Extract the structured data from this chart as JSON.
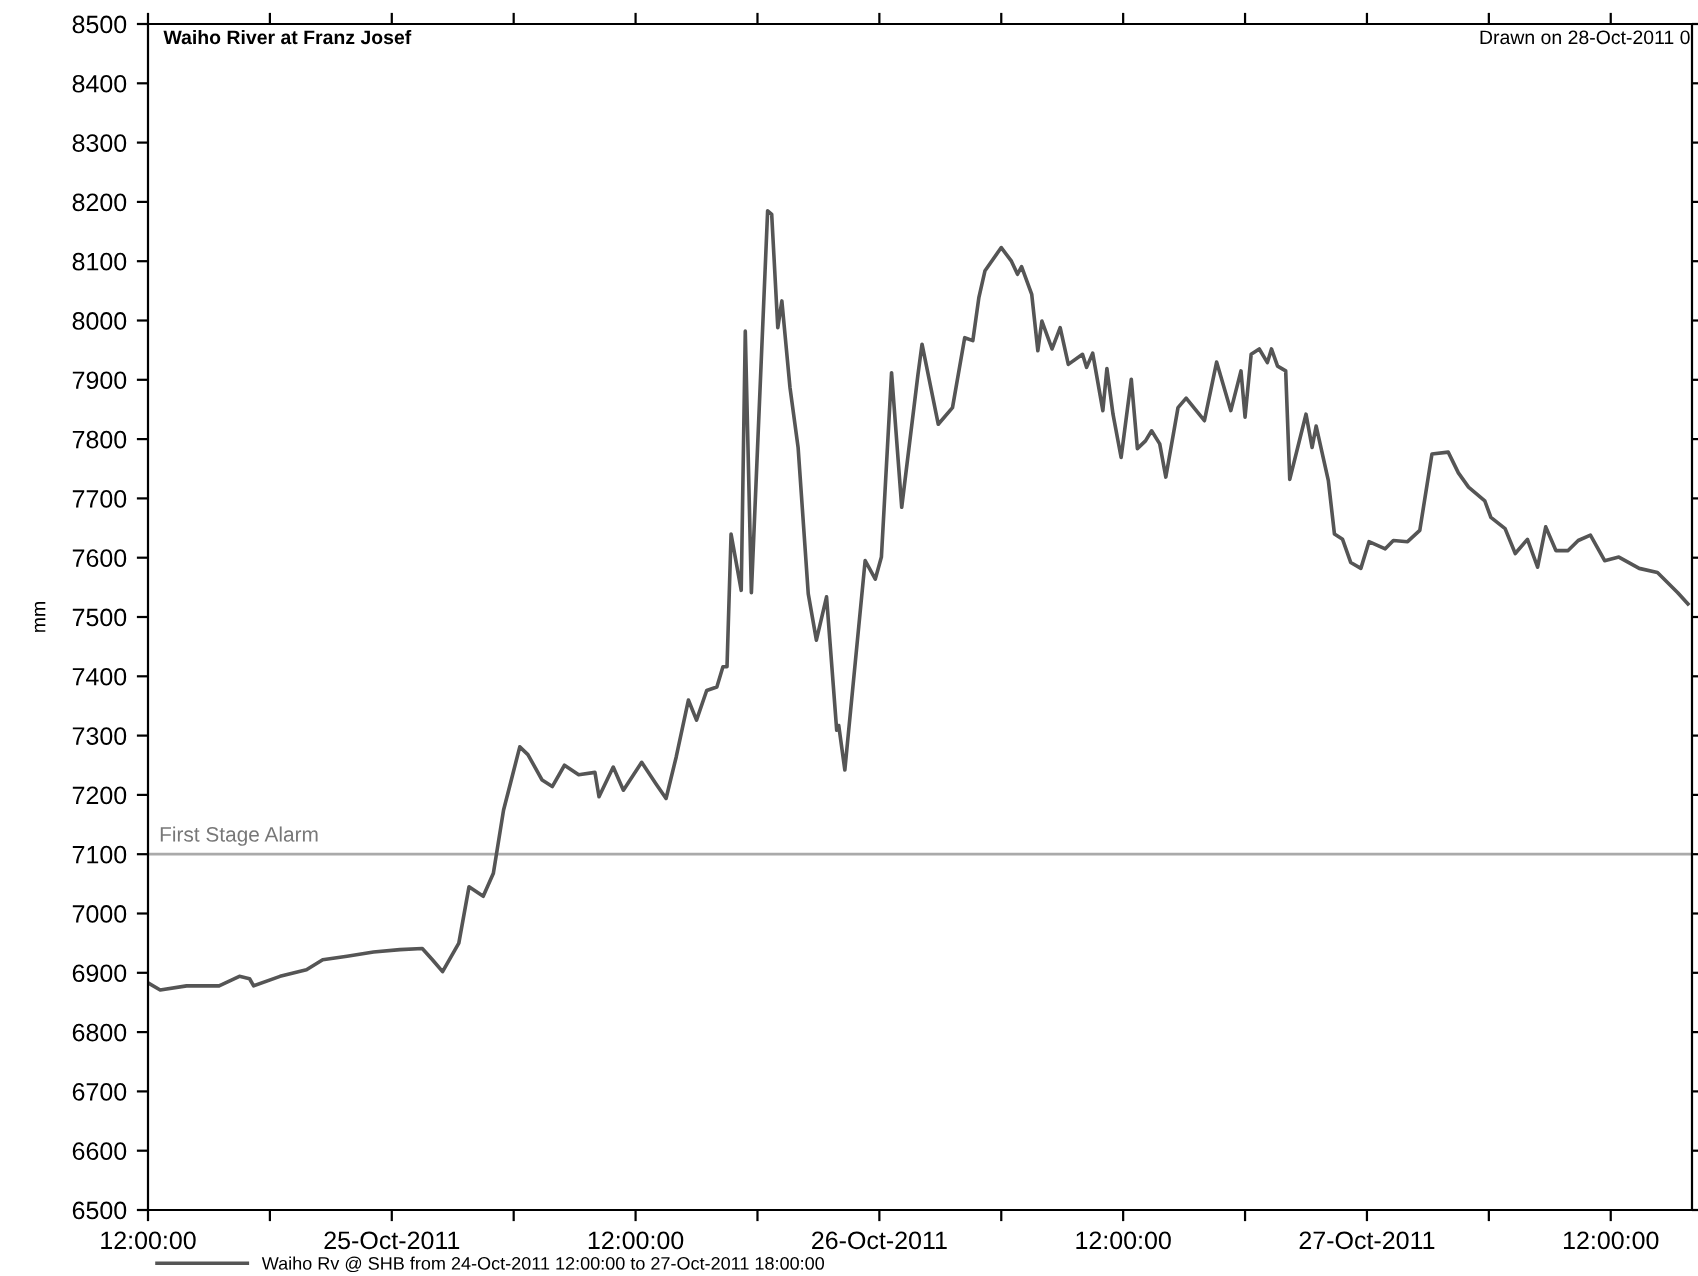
{
  "chart_data": {
    "type": "line",
    "title": "Waiho River at Franz Josef",
    "ylabel": "mm",
    "annotations": [
      "Drawn on 28-Oct-2011 0"
    ],
    "xlim": [
      "2011-10-24T12:00",
      "2011-10-27T16:00"
    ],
    "xticks": [
      {
        "value": "2011-10-24T12:00",
        "label": "12:00:00"
      },
      {
        "value": "2011-10-24T18:00",
        "label": null
      },
      {
        "value": "2011-10-25T00:00",
        "label": "25-Oct-2011"
      },
      {
        "value": "2011-10-25T06:00",
        "label": null
      },
      {
        "value": "2011-10-25T12:00",
        "label": "12:00:00"
      },
      {
        "value": "2011-10-25T18:00",
        "label": null
      },
      {
        "value": "2011-10-26T00:00",
        "label": "26-Oct-2011"
      },
      {
        "value": "2011-10-26T06:00",
        "label": null
      },
      {
        "value": "2011-10-26T12:00",
        "label": "12:00:00"
      },
      {
        "value": "2011-10-26T18:00",
        "label": null
      },
      {
        "value": "2011-10-27T00:00",
        "label": "27-Oct-2011"
      },
      {
        "value": "2011-10-27T06:00",
        "label": null
      },
      {
        "value": "2011-10-27T12:00",
        "label": "12:00:00"
      }
    ],
    "ylim": [
      6500,
      8500
    ],
    "yticks": [
      6500,
      6600,
      6700,
      6800,
      6900,
      7000,
      7100,
      7200,
      7300,
      7400,
      7500,
      7600,
      7700,
      7800,
      7900,
      8000,
      8100,
      8200,
      8300,
      8400,
      8500
    ],
    "grid": false,
    "legend": "bottom left",
    "marker": "none",
    "line_style": "solid",
    "ref_lines": [
      {
        "axis": "y",
        "value": 7100,
        "label": "First Stage Alarm",
        "color": "#aaaaaa"
      }
    ],
    "series": [
      {
        "name": "Waiho Rv @ SHB from 24-Oct-2011 12:00:00 to 27-Oct-2011 18:00:00",
        "color": "#555555",
        "x": [
          "2011-10-24T12:00",
          "2011-10-24T12:36",
          "2011-10-24T13:54",
          "2011-10-24T15:30",
          "2011-10-24T16:30",
          "2011-10-24T17:00",
          "2011-10-24T17:12",
          "2011-10-24T18:30",
          "2011-10-24T19:48",
          "2011-10-24T20:36",
          "2011-10-24T21:48",
          "2011-10-24T23:06",
          "2011-10-25T00:24",
          "2011-10-25T01:30",
          "2011-10-25T02:00",
          "2011-10-25T02:30",
          "2011-10-25T03:18",
          "2011-10-25T03:48",
          "2011-10-25T04:30",
          "2011-10-25T05:00",
          "2011-10-25T05:30",
          "2011-10-25T06:18",
          "2011-10-25T06:42",
          "2011-10-25T07:24",
          "2011-10-25T07:54",
          "2011-10-25T08:30",
          "2011-10-25T09:12",
          "2011-10-25T10:00",
          "2011-10-25T10:12",
          "2011-10-25T10:54",
          "2011-10-25T11:24",
          "2011-10-25T12:18",
          "2011-10-25T13:00",
          "2011-10-25T13:30",
          "2011-10-25T14:00",
          "2011-10-25T14:36",
          "2011-10-25T15:00",
          "2011-10-25T15:30",
          "2011-10-25T16:00",
          "2011-10-25T16:18",
          "2011-10-25T16:30",
          "2011-10-25T16:42",
          "2011-10-25T17:12",
          "2011-10-25T17:24",
          "2011-10-25T17:42",
          "2011-10-25T18:30",
          "2011-10-25T18:42",
          "2011-10-25T19:00",
          "2011-10-25T19:12",
          "2011-10-25T19:36",
          "2011-10-25T20:00",
          "2011-10-25T20:30",
          "2011-10-25T20:54",
          "2011-10-25T21:24",
          "2011-10-25T21:54",
          "2011-10-25T22:00",
          "2011-10-25T22:18",
          "2011-10-25T23:18",
          "2011-10-25T23:48",
          "2011-10-26T00:06",
          "2011-10-26T00:36",
          "2011-10-26T01:06",
          "2011-10-26T01:54",
          "2011-10-26T02:06",
          "2011-10-26T02:54",
          "2011-10-26T03:36",
          "2011-10-26T04:12",
          "2011-10-26T04:36",
          "2011-10-26T04:54",
          "2011-10-26T05:12",
          "2011-10-26T06:00",
          "2011-10-26T06:30",
          "2011-10-26T06:48",
          "2011-10-26T07:00",
          "2011-10-26T07:30",
          "2011-10-26T07:48",
          "2011-10-26T08:00",
          "2011-10-26T08:30",
          "2011-10-26T08:54",
          "2011-10-26T09:18",
          "2011-10-26T10:00",
          "2011-10-26T10:12",
          "2011-10-26T10:30",
          "2011-10-26T11:00",
          "2011-10-26T11:12",
          "2011-10-26T11:30",
          "2011-10-26T11:54",
          "2011-10-26T12:24",
          "2011-10-26T12:42",
          "2011-10-26T13:06",
          "2011-10-26T13:24",
          "2011-10-26T13:48",
          "2011-10-26T14:06",
          "2011-10-26T14:42",
          "2011-10-26T15:06",
          "2011-10-26T16:00",
          "2011-10-26T16:36",
          "2011-10-26T17:18",
          "2011-10-26T17:48",
          "2011-10-26T18:00",
          "2011-10-26T18:18",
          "2011-10-26T18:42",
          "2011-10-26T19:06",
          "2011-10-26T19:18",
          "2011-10-26T19:36",
          "2011-10-26T20:00",
          "2011-10-26T20:12",
          "2011-10-26T21:00",
          "2011-10-26T21:18",
          "2011-10-26T21:30",
          "2011-10-26T22:06",
          "2011-10-26T22:24",
          "2011-10-26T22:48",
          "2011-10-26T23:12",
          "2011-10-26T23:42",
          "2011-10-27T00:06",
          "2011-10-27T00:54",
          "2011-10-27T01:18",
          "2011-10-27T02:00",
          "2011-10-27T02:36",
          "2011-10-27T03:12",
          "2011-10-27T04:00",
          "2011-10-27T04:30",
          "2011-10-27T05:00",
          "2011-10-27T05:48",
          "2011-10-27T06:06",
          "2011-10-27T06:48",
          "2011-10-27T07:18",
          "2011-10-27T07:54",
          "2011-10-27T08:24",
          "2011-10-27T08:48",
          "2011-10-27T09:18",
          "2011-10-27T09:54",
          "2011-10-27T10:24",
          "2011-10-27T11:00",
          "2011-10-27T11:42",
          "2011-10-27T12:24",
          "2011-10-27T13:24",
          "2011-10-27T14:18",
          "2011-10-27T15:18",
          "2011-10-27T15:48"
        ],
        "values": [
          6883,
          6871,
          6878,
          6878,
          6894,
          6890,
          6878,
          6894,
          6905,
          6922,
          6928,
          6935,
          6939,
          6941,
          6922,
          6902,
          6950,
          7045,
          7029,
          7068,
          7174,
          7281,
          7268,
          7225,
          7214,
          7250,
          7234,
          7238,
          7197,
          7247,
          7208,
          7255,
          7219,
          7194,
          7264,
          7360,
          7326,
          7376,
          7382,
          7416,
          7416,
          7640,
          7545,
          7982,
          7541,
          8185,
          8179,
          7988,
          8033,
          7887,
          7786,
          7539,
          7461,
          7534,
          7309,
          7317,
          7242,
          7595,
          7564,
          7601,
          7912,
          7685,
          7909,
          7960,
          7825,
          7853,
          7971,
          7966,
          8039,
          8084,
          8123,
          8100,
          8078,
          8091,
          8044,
          7949,
          7999,
          7952,
          7988,
          7926,
          7943,
          7921,
          7945,
          7848,
          7919,
          7842,
          7769,
          7901,
          7784,
          7797,
          7814,
          7792,
          7736,
          7853,
          7869,
          7831,
          7930,
          7848,
          7915,
          7837,
          7943,
          7952,
          7929,
          7952,
          7923,
          7915,
          7732,
          7842,
          7786,
          7822,
          7730,
          7640,
          7631,
          7592,
          7582,
          7627,
          7615,
          7629,
          7627,
          7646,
          7775,
          7778,
          7743,
          7719,
          7696,
          7668,
          7649,
          7607,
          7631,
          7584,
          7652,
          7612,
          7612,
          7629,
          7638,
          7595,
          7601,
          7582,
          7575,
          7541,
          7522
        ]
      }
    ]
  }
}
